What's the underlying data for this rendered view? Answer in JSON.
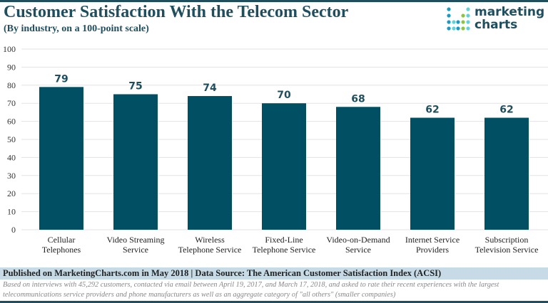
{
  "chart_data": {
    "type": "bar",
    "title": "Customer Satisfaction With the Telecom Sector",
    "subtitle": "(By industry, on a 100-point scale)",
    "categories": [
      [
        "Cellular",
        "Telephones"
      ],
      [
        "Video Streaming",
        "Service"
      ],
      [
        "Wireless",
        "Telephone Service"
      ],
      [
        "Fixed-Line",
        "Telephone Service"
      ],
      [
        "Video-on-Demand",
        "Service"
      ],
      [
        "Internet Service",
        "Providers"
      ],
      [
        "Subscription",
        "Television Service"
      ]
    ],
    "values": [
      79,
      75,
      74,
      70,
      68,
      62,
      62
    ],
    "ylim": [
      0,
      100
    ],
    "yticks": [
      0,
      10,
      20,
      30,
      40,
      50,
      60,
      70,
      80,
      90,
      100
    ],
    "grid": true,
    "bar_color": "#004f63"
  },
  "logo": {
    "line1": "marketing",
    "line2": "charts"
  },
  "footer": {
    "published": "Published on MarketingCharts.com in May 2018 | Data Source: The American Customer Satisfaction Index (ACSI)",
    "note": "Based on interviews with 45,292 customers, contacted via email between April 19, 2017, and March 17, 2018, and asked to rate their recent experiences with the largest telecommunications service providers and phone manufacturers as well as an aggregate category of \"all others\" (smaller companies)"
  }
}
